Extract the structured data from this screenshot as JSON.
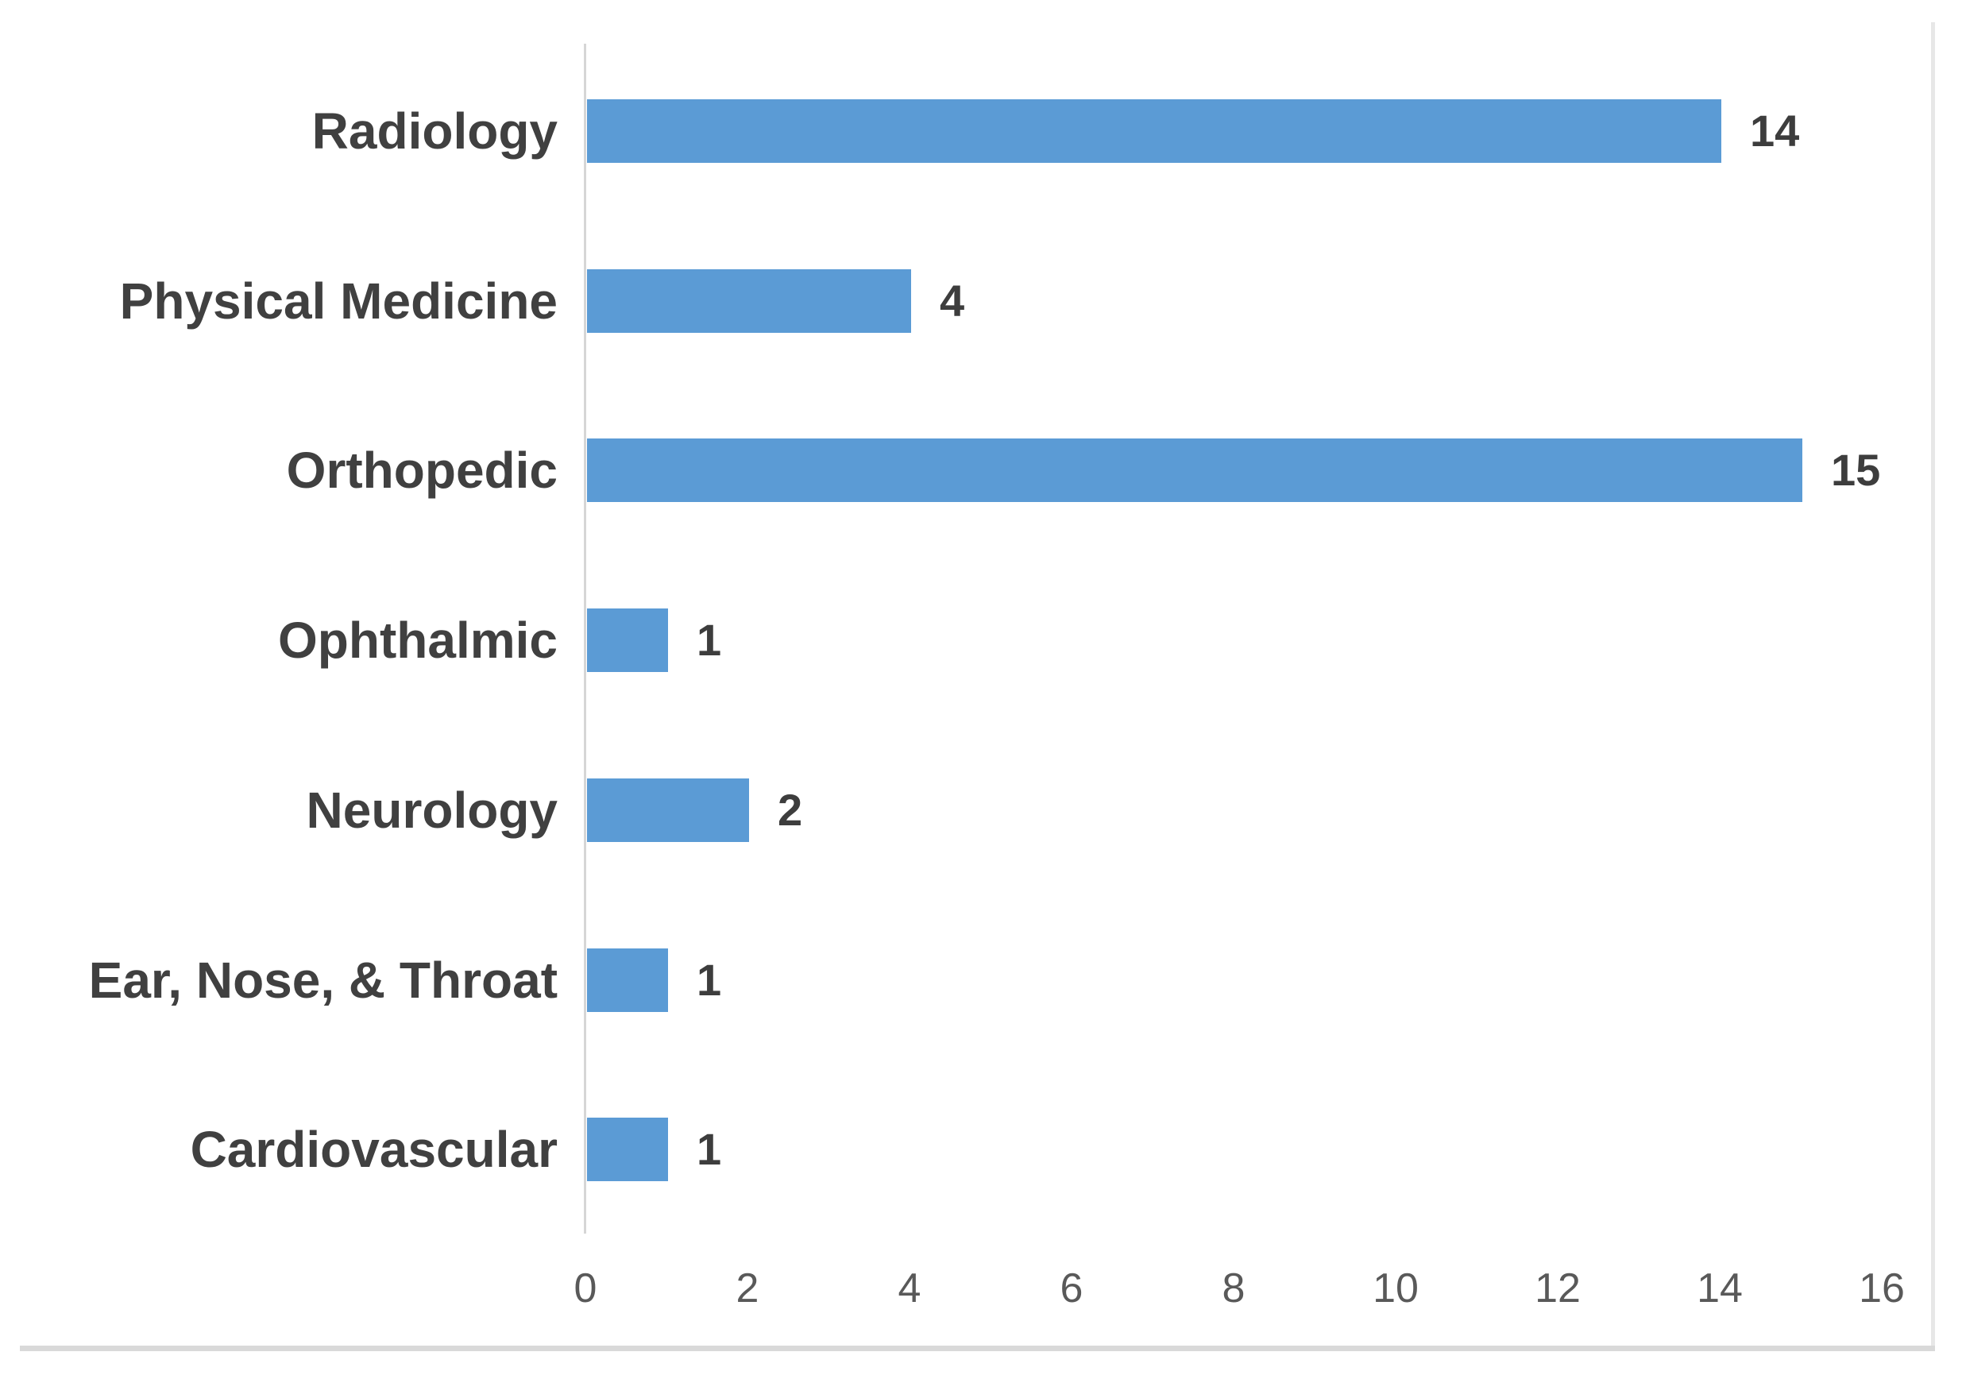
{
  "chart_data": {
    "type": "bar",
    "orientation": "horizontal",
    "title": "",
    "xlabel": "",
    "ylabel": "",
    "categories": [
      "Radiology",
      "Physical Medicine",
      "Orthopedic",
      "Ophthalmic",
      "Neurology",
      "Ear, Nose, & Throat",
      "Cardiovascular"
    ],
    "values": [
      14,
      4,
      15,
      1,
      2,
      1,
      1
    ],
    "data_labels": [
      "14",
      "4",
      "15",
      "1",
      "2",
      "1",
      "1"
    ],
    "xlim": [
      0,
      16
    ],
    "x_tick_labels": [
      "0",
      "2",
      "4",
      "6",
      "8",
      "10",
      "12",
      "14",
      "16"
    ],
    "x_tick_values": [
      0,
      2,
      4,
      6,
      8,
      10,
      12,
      14,
      16
    ],
    "grid": false,
    "legend": false,
    "data_labels_shown": true,
    "colors": {
      "bar": "#5B9BD5",
      "category_label": "#404040",
      "value_label": "#3d3d3d",
      "tick_label": "#595959",
      "axis_line": "#d6d6d6"
    }
  }
}
